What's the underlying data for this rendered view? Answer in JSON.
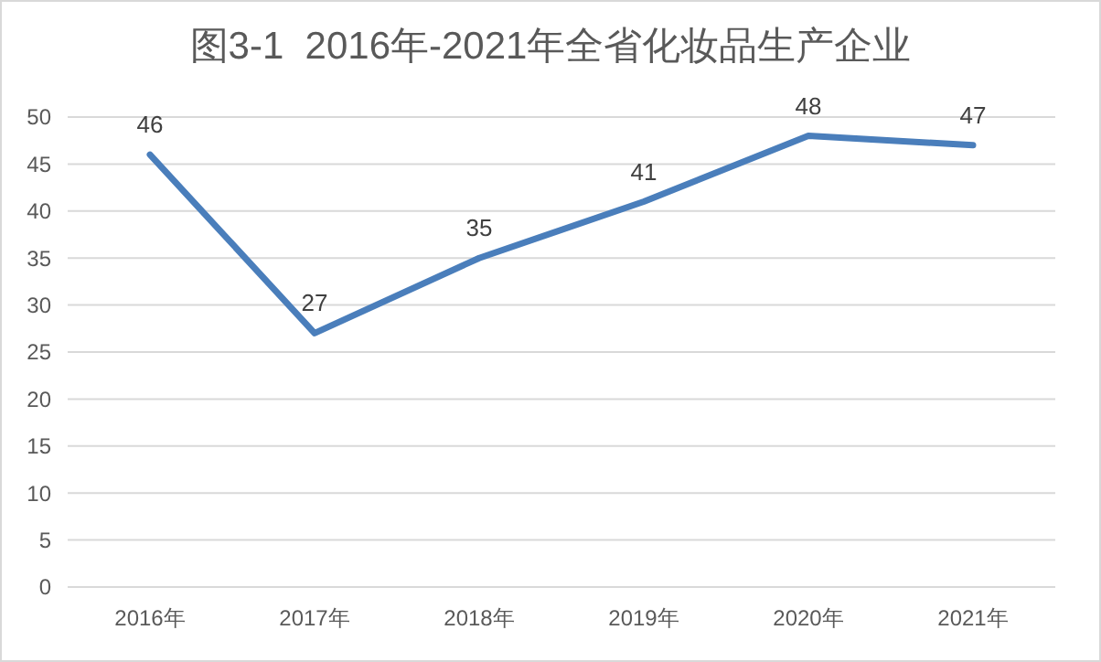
{
  "chart_data": {
    "type": "line",
    "title": "图3-1  2016年-2021年全省化妆品生产企业",
    "categories": [
      "2016年",
      "2017年",
      "2018年",
      "2019年",
      "2020年",
      "2021年"
    ],
    "series": [
      {
        "color": "#4a7ebb",
        "values": [
          46,
          27,
          35,
          41,
          48,
          47
        ]
      }
    ],
    "ylim": [
      0,
      50
    ],
    "yticks": [
      0,
      5,
      10,
      15,
      20,
      25,
      30,
      35,
      40,
      45,
      50
    ],
    "grid": "y",
    "data_labels": true,
    "marker": "none",
    "line_style": "solid"
  }
}
